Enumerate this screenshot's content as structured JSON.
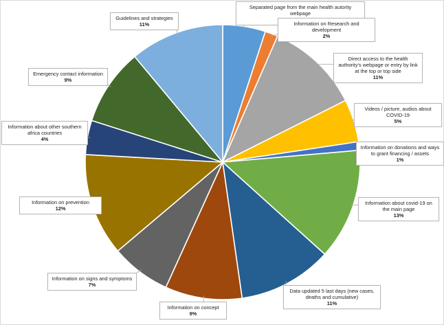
{
  "chart_data": {
    "type": "pie",
    "title": "",
    "slices": [
      {
        "label": "Separated page from the main health autority webpage",
        "percent_label": "5%",
        "value": 5,
        "color": "#5b9bd5"
      },
      {
        "label": "Information on Research and development",
        "percent_label": "2%",
        "value": 1.5,
        "color": "#ed7d31"
      },
      {
        "label": "Direct access to the health authority's webpage or entry by link at the top or top side",
        "percent_label": "11%",
        "value": 11,
        "color": "#a5a5a5"
      },
      {
        "label": "Videos / picture, audios about COVID-19",
        "percent_label": "5%",
        "value": 5,
        "color": "#ffc000"
      },
      {
        "label": "Information on donations and ways to grant financing / assets",
        "percent_label": "1%",
        "value": 1,
        "color": "#4472c4"
      },
      {
        "label": "Information about covid-19 on the main page",
        "percent_label": "13%",
        "value": 13,
        "color": "#70ad47"
      },
      {
        "label": "Data updated 5 last days (new cases, deaths and cumulative)",
        "percent_label": "11%",
        "value": 11,
        "color": "#255e91"
      },
      {
        "label": "Information on concept",
        "percent_label": "9%",
        "value": 9,
        "color": "#9e480e"
      },
      {
        "label": "Information on signs and symptoms",
        "percent_label": "7%",
        "value": 7,
        "color": "#636363"
      },
      {
        "label": "Information on prevention",
        "percent_label": "12%",
        "value": 12,
        "color": "#997300"
      },
      {
        "label": "Information about other southern africa countries",
        "percent_label": "4%",
        "value": 4,
        "color": "#264478"
      },
      {
        "label": "Emergency contact information",
        "percent_label": "9%",
        "value": 9,
        "color": "#43682b"
      },
      {
        "label": "Guidelines and strategies",
        "percent_label": "11%",
        "value": 11,
        "color": "#7cafdd"
      }
    ]
  }
}
